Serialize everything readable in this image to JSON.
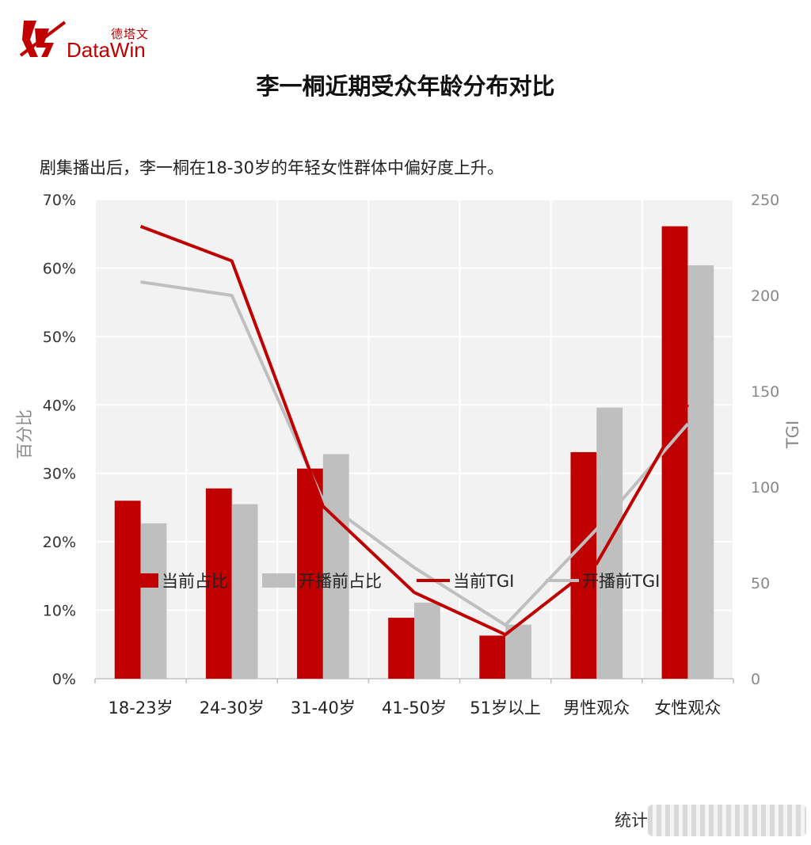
{
  "header": {
    "logo_cn": "德塔文",
    "logo_en": "DataWin",
    "title": "李一桐近期受众年龄分布对比",
    "subtitle": "剧集播出后，李一桐在18-30岁的年轻女性群体中偏好度上升。"
  },
  "footer": {
    "text": "统计"
  },
  "colors": {
    "current": "#c00000",
    "before": "#bfbfbf",
    "plot_bg": "#f2f2f2",
    "logo": "#c00000"
  },
  "chart_data": {
    "type": "bar",
    "categories": [
      "18-23岁",
      "24-30岁",
      "31-40岁",
      "41-50岁",
      "51岁以上",
      "男性观众",
      "女性观众"
    ],
    "series": [
      {
        "name": "当前占比",
        "type": "bar",
        "axis": "left",
        "values": [
          26.0,
          27.8,
          30.7,
          8.9,
          6.3,
          33.1,
          66.1
        ]
      },
      {
        "name": "开播前占比",
        "type": "bar",
        "axis": "left",
        "values": [
          22.7,
          25.5,
          32.8,
          11.1,
          7.9,
          39.6,
          60.4
        ]
      },
      {
        "name": "当前TGI",
        "type": "line",
        "axis": "right",
        "values": [
          236,
          218,
          90,
          45,
          23,
          60,
          143
        ]
      },
      {
        "name": "开播前TGI",
        "type": "line",
        "axis": "right",
        "values": [
          207,
          200,
          93,
          58,
          28,
          78,
          133
        ]
      }
    ],
    "ylabel": "百分比",
    "y2label": "TGI",
    "ylim": [
      0,
      70
    ],
    "y2lim": [
      0,
      250
    ],
    "yticks": [
      "0%",
      "10%",
      "20%",
      "30%",
      "40%",
      "50%",
      "60%",
      "70%"
    ],
    "y2ticks": [
      "0",
      "50",
      "100",
      "150",
      "200",
      "250"
    ],
    "grid": true,
    "legend": "bottom"
  }
}
